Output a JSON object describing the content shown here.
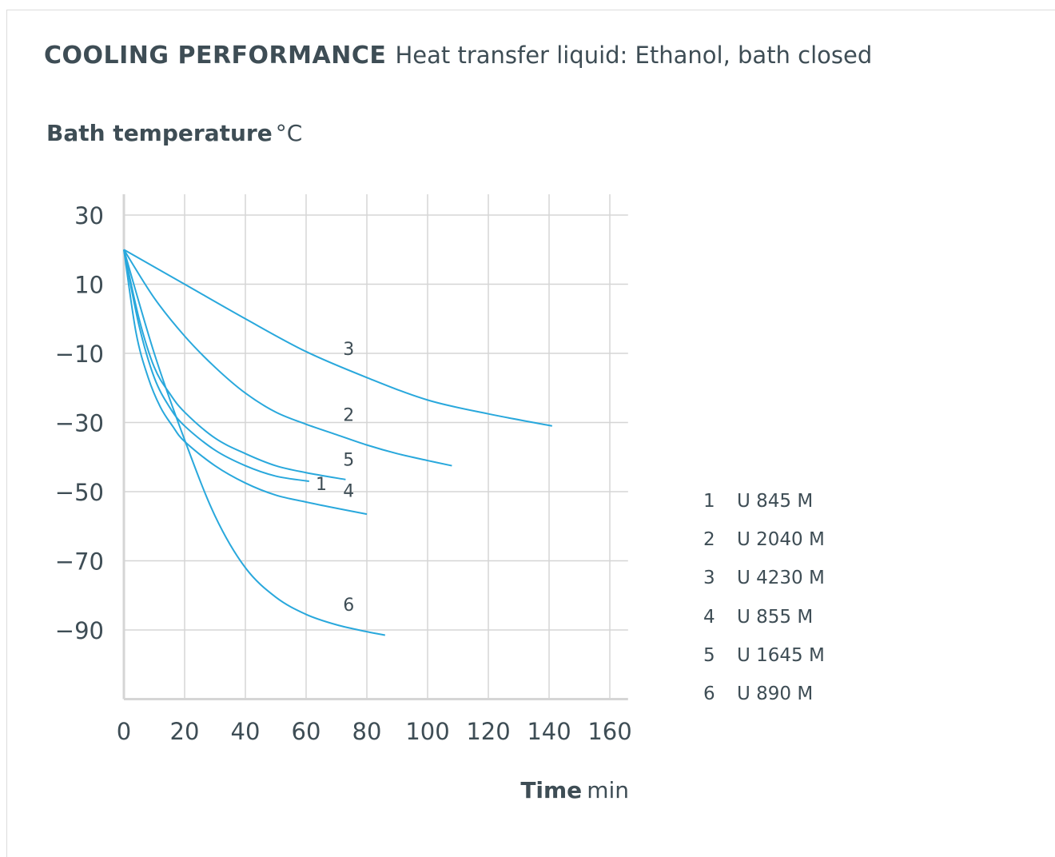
{
  "header": {
    "title": "COOLING PERFORMANCE",
    "subtitle": "Heat transfer liquid: Ethanol, bath closed"
  },
  "axes": {
    "y_label": "Bath temperature",
    "y_unit": "°C",
    "x_label": "Time",
    "x_unit": "min"
  },
  "colors": {
    "line": "#29a8dc",
    "grid": "#d5d5d5",
    "text": "#3e4d55"
  },
  "legend": [
    {
      "number": "1",
      "name": "U 845 M"
    },
    {
      "number": "2",
      "name": "U 2040 M"
    },
    {
      "number": "3",
      "name": "U 4230 M"
    },
    {
      "number": "4",
      "name": "U 855 M"
    },
    {
      "number": "5",
      "name": "U 1645 M"
    },
    {
      "number": "6",
      "name": "U 890 M"
    }
  ],
  "chart_data": {
    "type": "line",
    "title": "COOLING PERFORMANCE",
    "subtitle": "Heat transfer liquid: Ethanol, bath closed",
    "xlabel": "Time min",
    "ylabel": "Bath temperature °C",
    "xlim": [
      0,
      166
    ],
    "ylim": [
      -110,
      36
    ],
    "x_ticks": [
      0,
      20,
      40,
      60,
      80,
      100,
      120,
      140,
      160
    ],
    "y_ticks": [
      30,
      10,
      -10,
      -30,
      -50,
      -70,
      -90
    ],
    "x_tick_labels": [
      "0",
      "20",
      "40",
      "60",
      "80",
      "100",
      "120",
      "140",
      "160"
    ],
    "y_tick_labels": [
      "30",
      "10",
      "−10",
      "−30",
      "−50",
      "−70",
      "−90"
    ],
    "grid": true,
    "legend_position": "right",
    "series": [
      {
        "name": "1",
        "label_at": [
          65,
          -49.5
        ],
        "points": [
          [
            0,
            20
          ],
          [
            5,
            -2
          ],
          [
            10,
            -17
          ],
          [
            15,
            -25.5
          ],
          [
            20,
            -31
          ],
          [
            30,
            -38
          ],
          [
            40,
            -42.5
          ],
          [
            50,
            -45.5
          ],
          [
            61,
            -47
          ]
        ]
      },
      {
        "name": "2",
        "label_at": [
          74,
          -29.5
        ],
        "points": [
          [
            0,
            20
          ],
          [
            10,
            6
          ],
          [
            20,
            -5
          ],
          [
            30,
            -14
          ],
          [
            40,
            -21.5
          ],
          [
            50,
            -27
          ],
          [
            60,
            -30.5
          ],
          [
            70,
            -33.5
          ],
          [
            80,
            -36.5
          ],
          [
            90,
            -39
          ],
          [
            100,
            -41
          ],
          [
            108,
            -42.5
          ]
        ]
      },
      {
        "name": "3",
        "label_at": [
          74,
          -10.5
        ],
        "points": [
          [
            0,
            20
          ],
          [
            20,
            10
          ],
          [
            40,
            0
          ],
          [
            60,
            -9.5
          ],
          [
            80,
            -17
          ],
          [
            100,
            -23.5
          ],
          [
            120,
            -27.5
          ],
          [
            141,
            -31
          ]
        ]
      },
      {
        "name": "4",
        "label_at": [
          74,
          -51.5
        ],
        "points": [
          [
            0,
            20
          ],
          [
            4,
            -4
          ],
          [
            8,
            -17
          ],
          [
            12,
            -25.5
          ],
          [
            16,
            -31
          ],
          [
            20,
            -35.5
          ],
          [
            30,
            -42.5
          ],
          [
            40,
            -47.5
          ],
          [
            50,
            -51
          ],
          [
            60,
            -53
          ],
          [
            70,
            -54.8
          ],
          [
            80,
            -56.5
          ]
        ]
      },
      {
        "name": "5",
        "label_at": [
          74,
          -42.5
        ],
        "points": [
          [
            0,
            20
          ],
          [
            5,
            0
          ],
          [
            10,
            -14
          ],
          [
            15,
            -21.5
          ],
          [
            20,
            -27
          ],
          [
            30,
            -34.5
          ],
          [
            40,
            -39
          ],
          [
            50,
            -42.5
          ],
          [
            60,
            -44.5
          ],
          [
            73,
            -46.5
          ]
        ]
      },
      {
        "name": "6",
        "label_at": [
          74,
          -84.5
        ],
        "points": [
          [
            0,
            20
          ],
          [
            10,
            -10
          ],
          [
            20,
            -35
          ],
          [
            30,
            -57
          ],
          [
            40,
            -72
          ],
          [
            50,
            -80.5
          ],
          [
            60,
            -85.5
          ],
          [
            70,
            -88.5
          ],
          [
            80,
            -90.5
          ],
          [
            86,
            -91.5
          ]
        ]
      }
    ]
  }
}
